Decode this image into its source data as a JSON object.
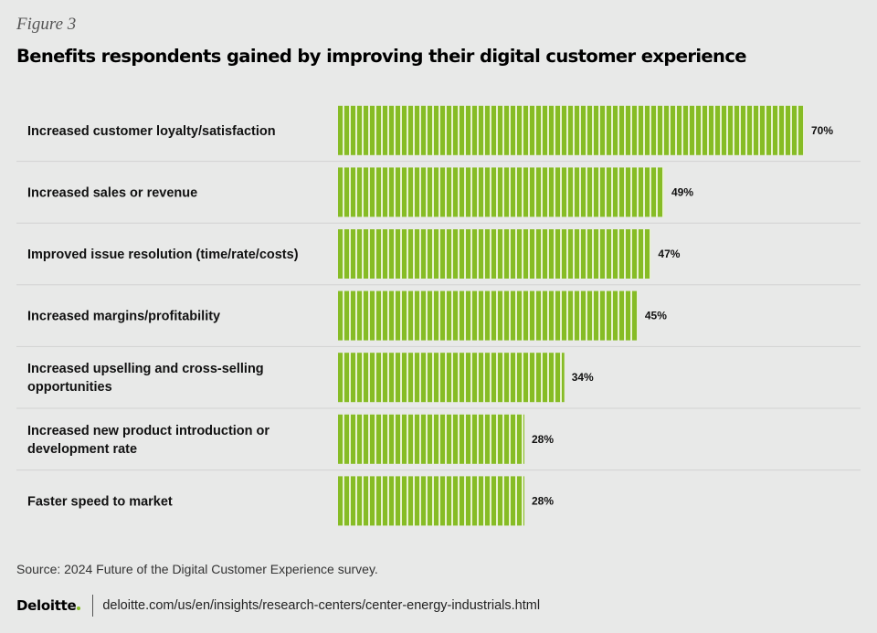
{
  "figure_label": "Figure 3",
  "source_text": "Source: 2024 Future of the Digital Customer Experience survey.",
  "footer": {
    "logo_text": "Deloitte",
    "url": "deloitte.com/us/en/insights/research-centers/center-energy-industrials.html"
  },
  "colors": {
    "bar": "#86bc25",
    "bar_stripe": "#e8f2d0",
    "background": "#e8e9e8",
    "divider": "#d2d2d2"
  },
  "chart_data": {
    "type": "bar",
    "orientation": "horizontal",
    "title": "Benefits respondents gained by improving their digital customer experience",
    "categories": [
      [
        "Increased customer loyalty/satisfaction"
      ],
      [
        "Increased sales or revenue"
      ],
      [
        "Improved issue resolution (time/rate/costs)"
      ],
      [
        "Increased margins/profitability"
      ],
      [
        "Increased upselling and cross-selling",
        "opportunities"
      ],
      [
        "Increased new product introduction or",
        "development rate"
      ],
      [
        "Faster speed to market"
      ]
    ],
    "values": [
      70,
      49,
      47,
      45,
      34,
      28,
      28
    ],
    "value_labels": [
      "70%",
      "49%",
      "47%",
      "45%",
      "34%",
      "28%",
      "28%"
    ],
    "unit": "%",
    "xlim": [
      0,
      100
    ],
    "grid": false,
    "legend": "none"
  }
}
